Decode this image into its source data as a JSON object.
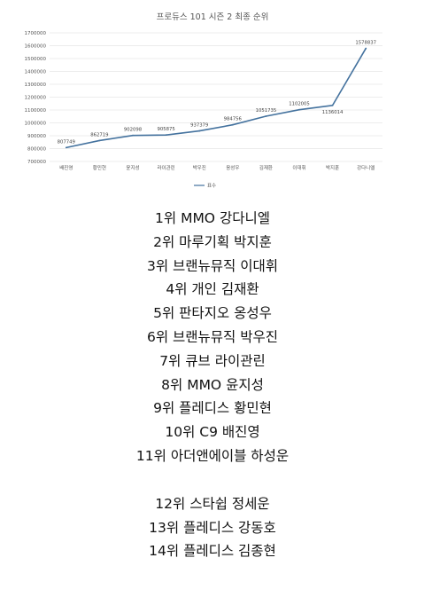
{
  "chart_data": {
    "type": "line",
    "title": "프로듀스 101 시즌 2 최종 순위",
    "categories": [
      "배진영",
      "황민현",
      "윤지성",
      "라이관린",
      "박우진",
      "옹성우",
      "김재환",
      "이대휘",
      "박지훈",
      "강다니엘"
    ],
    "series": [
      {
        "name": "표수",
        "values": [
          807749,
          862719,
          902098,
          905875,
          937379,
          984756,
          1051735,
          1102005,
          1136014,
          1578837
        ]
      }
    ],
    "y_ticks": [
      "1700000",
      "1600000",
      "1500000",
      "1400000",
      "1300000",
      "1200000",
      "1100000",
      "1000000",
      "900000",
      "800000",
      "700000"
    ],
    "ylim": [
      700000,
      1700000
    ],
    "grid": true,
    "legend": "bottom",
    "line_color": "#44729e"
  },
  "ranking": {
    "items": [
      "1위 MMO 강다니엘",
      "2위 마루기획 박지훈",
      "3위 브랜뉴뮤직 이대휘",
      "4위 개인 김재환",
      "5위 판타지오 옹성우",
      "6위 브랜뉴뮤직 박우진",
      "7위 큐브 라이관린",
      "8위 MMO 윤지성",
      "9위 플레디스 황민현",
      "10위 C9 배진영",
      "11위 아더앤에이블 하성운",
      "12위 스타쉽 정세운",
      "13위 플레디스 강동호",
      "14위 플레디스 김종현"
    ]
  }
}
